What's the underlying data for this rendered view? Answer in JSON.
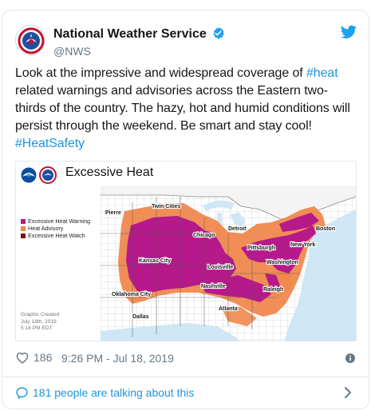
{
  "tweet": {
    "display_name": "National Weather Service",
    "handle": "@NWS",
    "text_parts": [
      "Look at the impressive and widespread coverage of ",
      "#heat",
      " related warnings and advisories across the Eastern two-thirds of the country. The hazy, hot and humid conditions will persist through the weekend. Be smart and stay cool! ",
      "#HeatSafety"
    ],
    "likes": "186",
    "timestamp": "9:26 PM - Jul 18, 2019",
    "talking": "181 people are talking about this"
  },
  "media": {
    "title": "Excessive Heat",
    "legend": [
      {
        "label": "Excessive Heat Warning",
        "color": "#b5198a"
      },
      {
        "label": "Heat Advisory",
        "color": "#f0884e"
      },
      {
        "label": "Excessive Heat Watch",
        "color": "#7a1414"
      }
    ],
    "created_lines": [
      "Graphic Created",
      "July 18th, 2019",
      "5:14 PM EDT"
    ],
    "cities": [
      "Twin Cities",
      "Pierre",
      "Chicago",
      "Detroit",
      "Boston",
      "New York",
      "Pittsburgh",
      "Washington",
      "Kansas City",
      "Louisville",
      "Nashville",
      "Raleigh",
      "Oklahoma City",
      "Atlanta",
      "Dallas"
    ]
  },
  "colors": {
    "accent": "#1b95e0",
    "warning": "#b5198a",
    "advisory": "#f0884e",
    "watch": "#7a1414",
    "water": "#cfe6f5"
  },
  "icons": {
    "avatar": "nws-logo-icon",
    "verified": "verified-badge-icon",
    "brand": "twitter-bird-icon",
    "like": "heart-outline-icon",
    "info": "info-icon",
    "talk": "speech-bubble-icon",
    "more": "chevron-right-icon"
  }
}
